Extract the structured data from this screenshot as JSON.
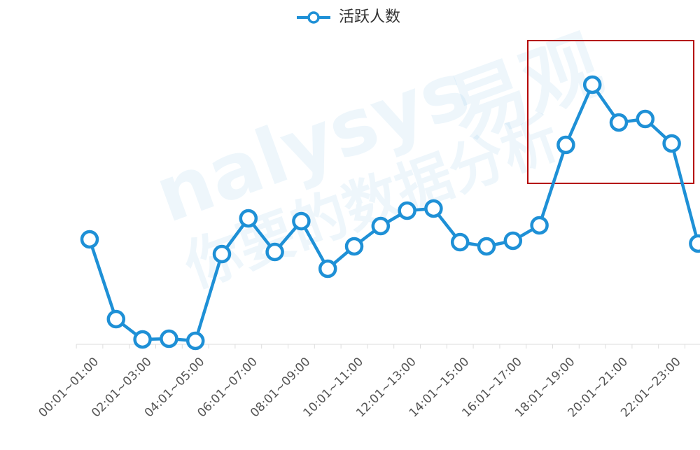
{
  "chart_data": {
    "type": "line",
    "watermark": [
      "nalysys",
      "易观",
      "你要的数据分析"
    ],
    "categories": [
      "00:01~01:00",
      null,
      "02:01~03:00",
      null,
      "04:01~05:00",
      null,
      "06:01~07:00",
      null,
      "08:01~09:00",
      null,
      "10:01~11:00",
      null,
      "12:01~13:00",
      null,
      "14:01~15:00",
      null,
      "16:01~17:00",
      null,
      "18:01~19:00",
      null,
      "20:01~21:00",
      null,
      "22:01~23:00",
      null
    ],
    "series": [
      {
        "name": "活跃人数",
        "color": "#1e90d6",
        "values": [
          150,
          36,
          7,
          8,
          5,
          129,
          180,
          132,
          176,
          108,
          140,
          169,
          191,
          194,
          146,
          140,
          148,
          170,
          285,
          371,
          317,
          322,
          287,
          144
        ]
      }
    ],
    "ylim": [
      0,
      400
    ],
    "legend": "top"
  }
}
